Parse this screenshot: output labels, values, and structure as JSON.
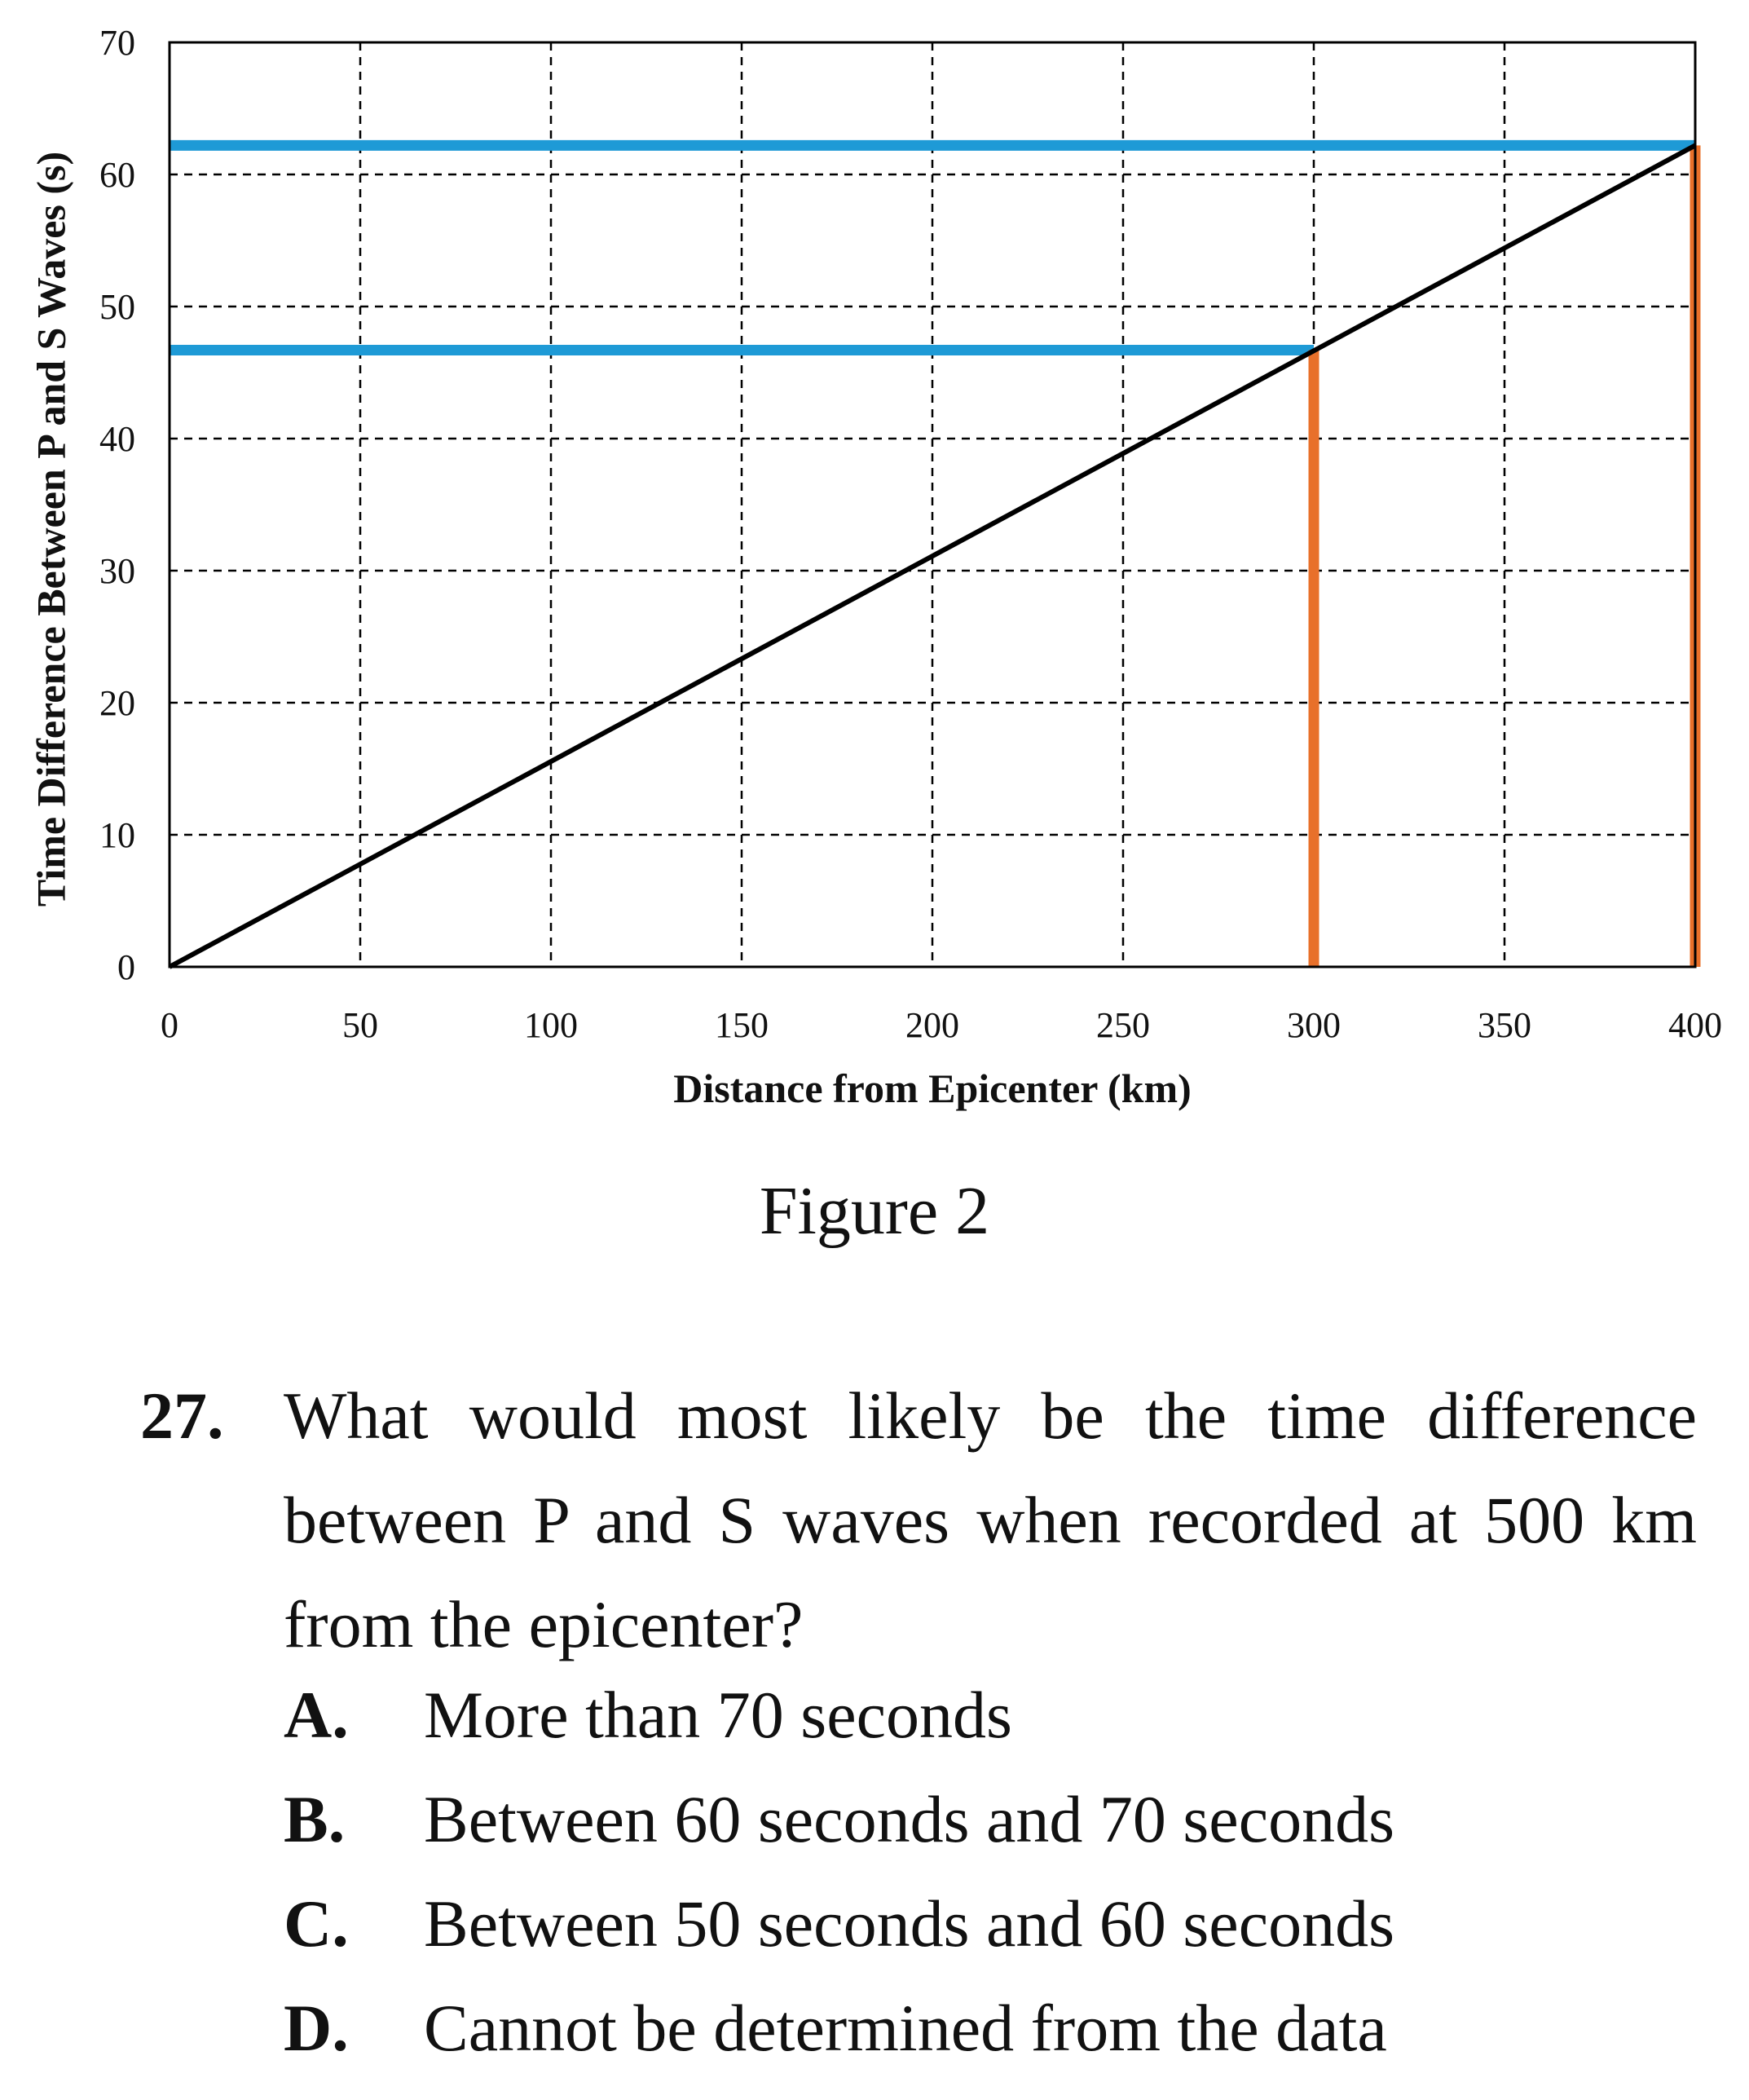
{
  "chart_data": {
    "type": "line",
    "title": "",
    "xlabel": "Distance from Epicenter (km)",
    "ylabel": "Time Difference Between P and S Waves (s)",
    "xlim": [
      0,
      400
    ],
    "ylim": [
      0,
      70
    ],
    "xticks": [
      0,
      50,
      100,
      150,
      200,
      250,
      300,
      350,
      400
    ],
    "yticks": [
      0,
      10,
      20,
      30,
      40,
      50,
      60,
      70
    ],
    "grid": true,
    "grid_style": "dashed",
    "series": [
      {
        "x": [
          0,
          400
        ],
        "y": [
          0,
          62.2
        ],
        "color": "#000000"
      }
    ],
    "annotations": {
      "horizontal_lines": [
        {
          "y": 62.2,
          "x_from": 0,
          "x_to": 400,
          "color": "#1e9ad6"
        },
        {
          "y": 46.7,
          "x_from": 0,
          "x_to": 300,
          "color": "#1e9ad6"
        }
      ],
      "vertical_lines": [
        {
          "x": 300,
          "y_from": 0,
          "y_to": 46.7,
          "color": "#e8702a"
        },
        {
          "x": 400,
          "y_from": 0,
          "y_to": 62.2,
          "color": "#e8702a"
        }
      ]
    }
  },
  "caption": "Figure 2",
  "question": {
    "number": "27.",
    "text": "What would most likely be the time difference between P and S waves when recorded at 500 km from the epicenter?",
    "options": [
      {
        "letter": "A.",
        "text": "More than 70 seconds"
      },
      {
        "letter": "B.",
        "text": "Between 60 seconds and 70 seconds"
      },
      {
        "letter": "C.",
        "text": "Between 50 seconds and 60 seconds"
      },
      {
        "letter": "D.",
        "text": "Cannot be determined from the data"
      }
    ]
  }
}
